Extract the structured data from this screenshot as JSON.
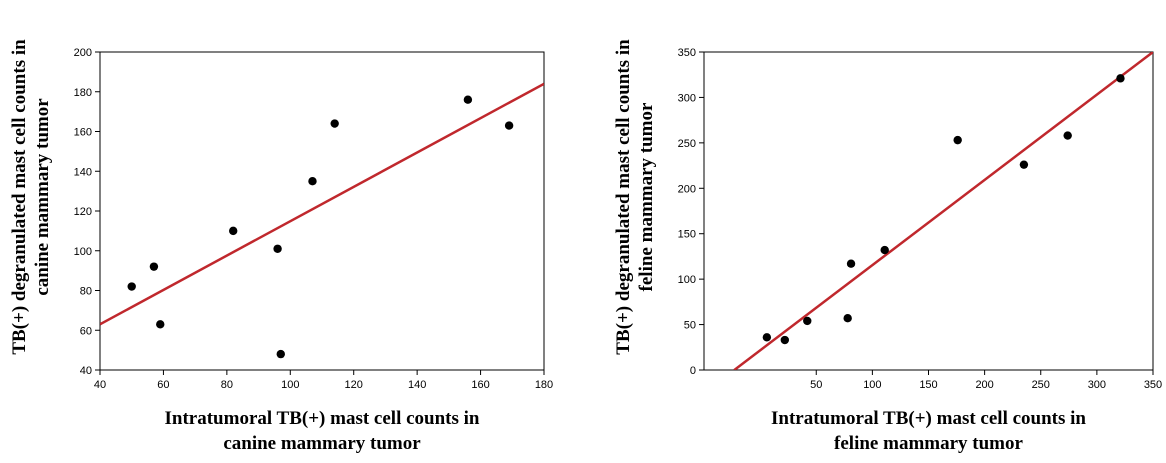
{
  "chart_data": [
    {
      "type": "scatter",
      "title": "",
      "xlabel_lines": [
        "Intratumoral TB(+) mast cell counts in",
        "canine mammary tumor"
      ],
      "ylabel_lines": [
        "TB(+) degranulated mast cell counts in",
        "canine mammary tumor"
      ],
      "xlim": [
        40,
        180
      ],
      "ylim": [
        40,
        200
      ],
      "xticks": [
        40,
        60,
        80,
        100,
        120,
        140,
        160,
        180
      ],
      "yticks": [
        40,
        60,
        80,
        100,
        120,
        140,
        160,
        180,
        200
      ],
      "series": [
        {
          "points": [
            {
              "x": 50,
              "y": 82
            },
            {
              "x": 57,
              "y": 92
            },
            {
              "x": 59,
              "y": 63
            },
            {
              "x": 82,
              "y": 110
            },
            {
              "x": 96,
              "y": 101
            },
            {
              "x": 97,
              "y": 48
            },
            {
              "x": 107,
              "y": 135
            },
            {
              "x": 114,
              "y": 164
            },
            {
              "x": 156,
              "y": 176
            },
            {
              "x": 169,
              "y": 163
            }
          ]
        }
      ],
      "regression_line": {
        "x": [
          40,
          180
        ],
        "y": [
          63,
          184
        ],
        "color": "#c0282d"
      },
      "point_color": "#000000",
      "grid": false
    },
    {
      "type": "scatter",
      "title": "",
      "xlabel_lines": [
        "Intratumoral TB(+) mast cell counts in",
        "feline mammary tumor"
      ],
      "ylabel_lines": [
        "TB(+) degranulated mast cell counts in",
        "feline mammary tumor"
      ],
      "xlim": [
        -50,
        350
      ],
      "ylim": [
        0,
        350
      ],
      "xticks": [
        50,
        100,
        150,
        200,
        250,
        300,
        350
      ],
      "yticks": [
        0,
        50,
        100,
        150,
        200,
        250,
        300,
        350
      ],
      "series": [
        {
          "points": [
            {
              "x": 6,
              "y": 36
            },
            {
              "x": 22,
              "y": 33
            },
            {
              "x": 42,
              "y": 54
            },
            {
              "x": 78,
              "y": 57
            },
            {
              "x": 81,
              "y": 117
            },
            {
              "x": 111,
              "y": 132
            },
            {
              "x": 176,
              "y": 253
            },
            {
              "x": 235,
              "y": 226
            },
            {
              "x": 274,
              "y": 258
            },
            {
              "x": 321,
              "y": 321
            }
          ]
        }
      ],
      "regression_line": {
        "x": [
          -23,
          350
        ],
        "y": [
          0,
          350
        ],
        "color": "#c0282d"
      },
      "point_color": "#000000",
      "grid": false
    }
  ]
}
